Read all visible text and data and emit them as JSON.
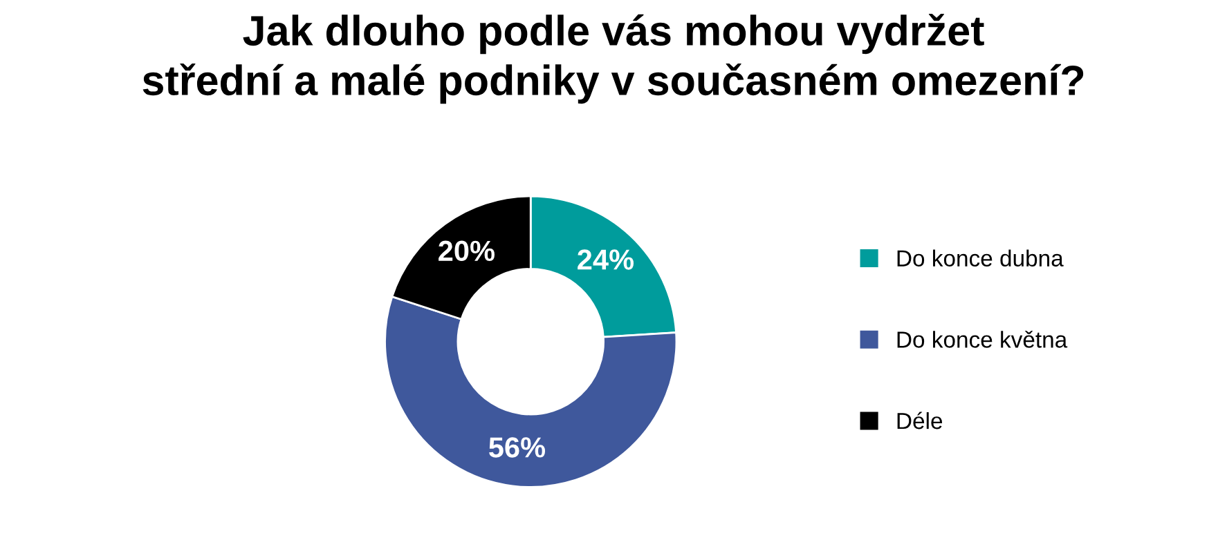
{
  "chart_data": {
    "type": "donut",
    "title": "Jak dlouho podle vás mohou vydržet\nstřední a malé podniky v současném omezení?",
    "categories": [
      "Do konce dubna",
      "Do konce května",
      "Déle"
    ],
    "values": [
      24,
      56,
      20
    ],
    "colors": [
      "#009c9c",
      "#3f589c",
      "#000000"
    ],
    "value_labels": [
      "24%",
      "56%",
      "20%"
    ],
    "legend": "right"
  }
}
